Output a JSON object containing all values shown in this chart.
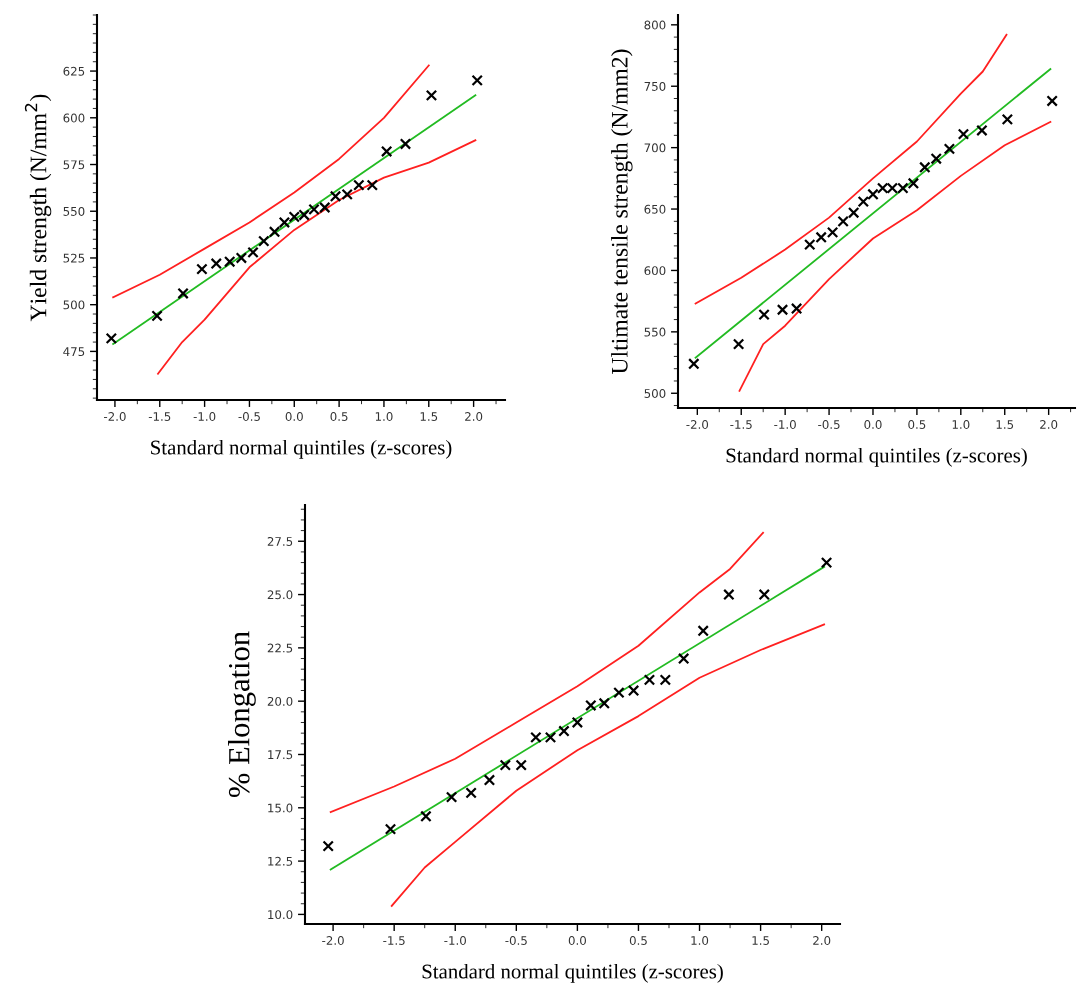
{
  "chart_data": [
    {
      "type": "scatter",
      "xlabel": "Standard normal quintiles (z-scores)",
      "ylabel": "Yield strength (N/mm$^{2}$)",
      "x": [
        -2.04,
        -1.53,
        -1.24,
        -1.03,
        -0.87,
        -0.72,
        -0.59,
        -0.46,
        -0.34,
        -0.22,
        -0.11,
        0,
        0.11,
        0.22,
        0.34,
        0.46,
        0.59,
        0.72,
        0.87,
        1.03,
        1.24,
        1.53,
        2.04
      ],
      "xlim": [
        -2.2,
        2.35
      ],
      "xticks": [
        {
          "value": -2,
          "label": "-2.0"
        },
        {
          "value": -1.5,
          "label": "-1.5"
        },
        {
          "value": -1,
          "label": "-1.0"
        },
        {
          "value": -0.5,
          "label": "-0.5"
        },
        {
          "value": 0,
          "label": "0.0"
        },
        {
          "value": 0.5,
          "label": "0.5"
        },
        {
          "value": 1,
          "label": "1.0"
        },
        {
          "value": 1.5,
          "label": "1.5"
        },
        {
          "value": 2,
          "label": "2.0"
        }
      ],
      "ylim": [
        449,
        655
      ],
      "yticks": [
        475,
        500,
        525,
        550,
        575,
        600,
        625
      ],
      "series": [
        {
          "marker": "cross",
          "color": "#000000",
          "values": [
            482,
            494,
            506,
            519,
            522,
            523,
            525,
            528,
            534,
            539,
            544,
            547,
            548,
            551,
            552,
            558,
            559,
            564,
            564,
            582,
            586,
            612,
            620
          ]
        },
        {
          "type": "line",
          "color": "#22bb22",
          "x": [
            -2.02,
            2.02
          ],
          "values": [
            479,
            612
          ]
        },
        {
          "type": "line",
          "color": "#ff2020",
          "x": [
            -2.02,
            -1.5,
            -1,
            -0.5,
            0,
            0.5,
            1,
            1.5
          ],
          "values": [
            504,
            516,
            530,
            544,
            560,
            578,
            600,
            628
          ]
        },
        {
          "type": "line",
          "color": "#ff2020",
          "x": [
            -1.52,
            -1.25,
            -1,
            -0.5,
            0,
            0.5,
            1,
            1.5,
            2.02
          ],
          "values": [
            463,
            480,
            492,
            520,
            540,
            556,
            568,
            576,
            588
          ]
        }
      ]
    },
    {
      "type": "scatter",
      "xlabel": "Standard normal quintiles (z-scores)",
      "ylabel": "Ultimate tensile strength (N/mm2)",
      "x": [
        -2.04,
        -1.53,
        -1.24,
        -1.03,
        -0.87,
        -0.72,
        -0.59,
        -0.46,
        -0.34,
        -0.22,
        -0.11,
        0,
        0.11,
        0.22,
        0.34,
        0.46,
        0.59,
        0.72,
        0.87,
        1.03,
        1.24,
        1.53,
        2.04
      ],
      "xlim": [
        -2.22,
        2.3
      ],
      "xticks": [
        {
          "value": -2,
          "label": "-2.0"
        },
        {
          "value": -1.5,
          "label": "-1.5"
        },
        {
          "value": -1,
          "label": "-1.0"
        },
        {
          "value": -0.5,
          "label": "-0.5"
        },
        {
          "value": 0,
          "label": "0.0"
        },
        {
          "value": 0.5,
          "label": "0.5"
        },
        {
          "value": 1,
          "label": "1.0"
        },
        {
          "value": 1.5,
          "label": "1.5"
        },
        {
          "value": 2,
          "label": "2.0"
        }
      ],
      "ylim": [
        488,
        808
      ],
      "yticks": [
        500,
        550,
        600,
        650,
        700,
        750,
        800
      ],
      "series": [
        {
          "marker": "cross",
          "color": "#000000",
          "values": [
            524,
            540,
            564,
            568,
            569,
            621,
            627,
            631,
            640,
            647,
            656,
            662,
            667,
            667,
            667,
            671,
            684,
            691,
            699,
            711,
            714,
            723,
            738
          ]
        },
        {
          "type": "line",
          "color": "#22bb22",
          "x": [
            -2.02,
            2.02
          ],
          "values": [
            529,
            764
          ]
        },
        {
          "type": "line",
          "color": "#ff2020",
          "x": [
            -2.02,
            -1.5,
            -1,
            -0.5,
            0,
            0.5,
            1,
            1.25,
            1.52
          ],
          "values": [
            573,
            594,
            617,
            643,
            675,
            705,
            744,
            762,
            792
          ]
        },
        {
          "type": "line",
          "color": "#ff2020",
          "x": [
            -1.52,
            -1.25,
            -1,
            -0.5,
            0,
            0.5,
            1,
            1.5,
            2.02
          ],
          "values": [
            502,
            540,
            555,
            593,
            626,
            649,
            677,
            702,
            721
          ]
        }
      ]
    },
    {
      "type": "scatter",
      "xlabel": "Standard normal quintiles (z-scores)",
      "ylabel": "% Elongation",
      "x": [
        -2.04,
        -1.53,
        -1.24,
        -1.03,
        -0.87,
        -0.72,
        -0.59,
        -0.46,
        -0.34,
        -0.22,
        -0.11,
        0,
        0.11,
        0.22,
        0.34,
        0.46,
        0.59,
        0.72,
        0.87,
        1.03,
        1.24,
        1.53,
        2.04
      ],
      "xlim": [
        -2.23,
        2.15
      ],
      "xticks": [
        {
          "value": -2,
          "label": "-2.0"
        },
        {
          "value": -1.5,
          "label": "-1.5"
        },
        {
          "value": -1,
          "label": "-1.0"
        },
        {
          "value": -0.5,
          "label": "-0.5"
        },
        {
          "value": 0,
          "label": "0.0"
        },
        {
          "value": 0.5,
          "label": "0.5"
        },
        {
          "value": 1,
          "label": "1.0"
        },
        {
          "value": 1.5,
          "label": "1.5"
        },
        {
          "value": 2,
          "label": "2.0"
        }
      ],
      "ylim": [
        9.55,
        29.2
      ],
      "yticks": [
        {
          "value": 10,
          "label": "10.0"
        },
        {
          "value": 12.5,
          "label": "12.5"
        },
        {
          "value": 15,
          "label": "15.0"
        },
        {
          "value": 17.5,
          "label": "17.5"
        },
        {
          "value": 20,
          "label": "20.0"
        },
        {
          "value": 22.5,
          "label": "22.5"
        },
        {
          "value": 25,
          "label": "25.0"
        },
        {
          "value": 27.5,
          "label": "27.5"
        }
      ],
      "series": [
        {
          "marker": "cross",
          "color": "#000000",
          "values": [
            13.2,
            14.0,
            14.6,
            15.5,
            15.7,
            16.3,
            17.0,
            17.0,
            18.3,
            18.3,
            18.6,
            19.0,
            19.8,
            19.9,
            20.4,
            20.5,
            21.0,
            21.0,
            22.0,
            23.3,
            25.0,
            25.0,
            26.5
          ]
        },
        {
          "type": "line",
          "color": "#22bb22",
          "x": [
            -2.02,
            2.02
          ],
          "values": [
            12.1,
            26.3
          ]
        },
        {
          "type": "line",
          "color": "#ff2020",
          "x": [
            -2.02,
            -1.5,
            -1,
            -0.5,
            0,
            0.5,
            1,
            1.25,
            1.52
          ],
          "values": [
            14.8,
            16.0,
            17.3,
            19.0,
            20.7,
            22.6,
            25.1,
            26.2,
            27.9
          ]
        },
        {
          "type": "line",
          "color": "#ff2020",
          "x": [
            -1.52,
            -1.25,
            -1,
            -0.5,
            0,
            0.5,
            1,
            1.5,
            2.02
          ],
          "values": [
            10.4,
            12.2,
            13.4,
            15.8,
            17.7,
            19.3,
            21.1,
            22.4,
            23.6
          ]
        }
      ]
    }
  ]
}
